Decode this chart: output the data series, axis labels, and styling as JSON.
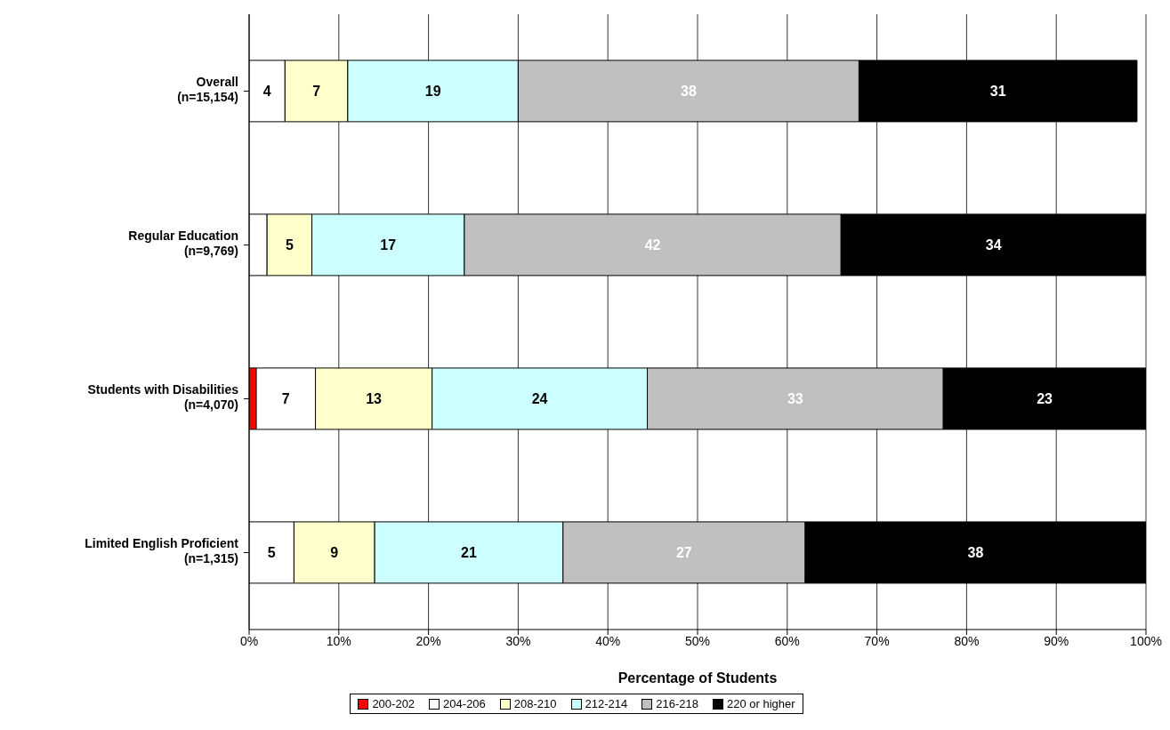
{
  "chart_data": {
    "type": "bar",
    "orientation": "horizontal",
    "stacked": true,
    "categories": [
      "Overall\n(n=15,154)",
      "Regular Education\n(n=9,769)",
      "Students with Disabilities\n(n=4,070)",
      "Limited English Proficient\n(n=1,315)"
    ],
    "series": [
      {
        "name": "200-202",
        "color": "#ff0000",
        "values": [
          0,
          0,
          0.8,
          0
        ],
        "value_labels": [
          null,
          null,
          null,
          null
        ]
      },
      {
        "name": "204-206",
        "color": "#ffffff",
        "values": [
          4,
          2,
          6.6,
          5
        ],
        "value_labels": [
          "4",
          null,
          "7",
          "5"
        ]
      },
      {
        "name": "208-210",
        "color": "#ffffcc",
        "values": [
          7,
          5,
          13,
          9
        ],
        "value_labels": [
          "7",
          "5",
          "13",
          "9"
        ]
      },
      {
        "name": "212-214",
        "color": "#ccffff",
        "values": [
          19,
          17,
          24,
          21
        ],
        "value_labels": [
          "19",
          "17",
          "24",
          "21"
        ]
      },
      {
        "name": "216-218",
        "color": "#c0c0c0",
        "values": [
          38,
          42,
          33,
          27
        ],
        "value_labels": [
          "38",
          "42",
          "33",
          "27"
        ]
      },
      {
        "name": "220 or higher",
        "color": "#000000",
        "values": [
          31,
          34,
          22.6,
          38
        ],
        "value_labels": [
          "31",
          "34",
          "23",
          "38"
        ]
      }
    ],
    "xlim": [
      0,
      100
    ],
    "xticks": [
      {
        "value": 0,
        "label": "0%"
      },
      {
        "value": 10,
        "label": "10%"
      },
      {
        "value": 20,
        "label": "20%"
      },
      {
        "value": 30,
        "label": "30%"
      },
      {
        "value": 40,
        "label": "40%"
      },
      {
        "value": 50,
        "label": "50%"
      },
      {
        "value": 60,
        "label": "60%"
      },
      {
        "value": 70,
        "label": "70%"
      },
      {
        "value": 80,
        "label": "80%"
      },
      {
        "value": 90,
        "label": "90%"
      },
      {
        "value": 100,
        "label": "100%"
      }
    ],
    "xlabel": "Percentage of Students",
    "grid": "x",
    "legend": "bottom"
  }
}
